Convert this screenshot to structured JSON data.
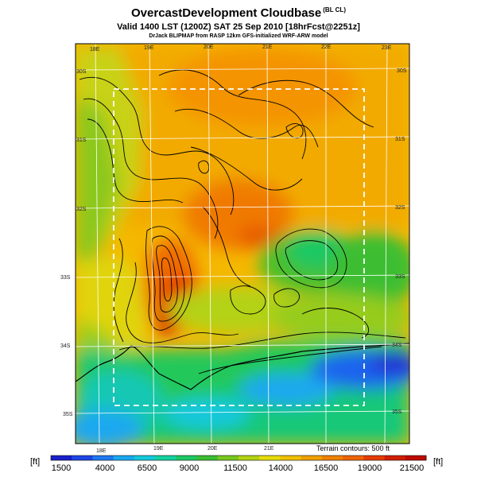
{
  "title": "OvercastDevelopment Cloudbase",
  "title_note": "(BL CL)",
  "subtitle": "Valid 1400 LST (1200Z) SAT 25 Sep 2010 [18hrFcst@2251z]",
  "credit": "DrJack BLIPMAP from RASP 12km GFS-initialized WRF-ARW model",
  "terrain_note": "Terrain contours: 500 ft",
  "colorbar": {
    "unit_left": "[ft]",
    "unit_right": "[ft]",
    "labels": [
      "1500",
      "4000",
      "6500",
      "9000",
      "11500",
      "14000",
      "16500",
      "19000",
      "21500"
    ],
    "colors": [
      "#1a20c8",
      "#1e46e6",
      "#1e78f0",
      "#1aa8f0",
      "#14c8dc",
      "#14d2a0",
      "#1ec864",
      "#3cbe32",
      "#78c81e",
      "#b4d214",
      "#e6dc0a",
      "#f0c000",
      "#f0a000",
      "#f08200",
      "#f06400",
      "#e63c00",
      "#d21e00",
      "#be0a00"
    ]
  },
  "map": {
    "longitude_labels": [
      "18E",
      "19E",
      "20E",
      "21E",
      "22E",
      "23E"
    ],
    "latitude_labels": [
      "30S",
      "31S",
      "32S",
      "33S",
      "34S",
      "35S"
    ]
  }
}
